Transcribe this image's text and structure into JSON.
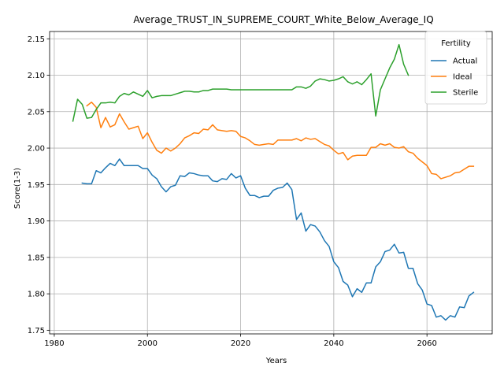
{
  "chart_data": {
    "type": "line",
    "title": "Average_TRUST_IN_SUPREME_COURT_White_Below_Average_IQ",
    "xlabel": "Years",
    "ylabel": "Score(1-3)",
    "xlim": [
      1979,
      2074
    ],
    "ylim": [
      1.745,
      2.16
    ],
    "xticks": [
      1980,
      2000,
      2020,
      2040,
      2060
    ],
    "yticks": [
      1.75,
      1.8,
      1.85,
      1.9,
      1.95,
      2.0,
      2.05,
      2.1,
      2.15
    ],
    "grid": true,
    "legend": {
      "title": "Fertility",
      "position": "top-right"
    },
    "series": [
      {
        "name": "Actual",
        "color": "#1f77b4",
        "x": [
          1986,
          1987,
          1988,
          1989,
          1990,
          1991,
          1992,
          1993,
          1994,
          1995,
          1996,
          1997,
          1998,
          1999,
          2000,
          2001,
          2002,
          2003,
          2004,
          2005,
          2006,
          2007,
          2008,
          2009,
          2010,
          2011,
          2012,
          2013,
          2014,
          2015,
          2016,
          2017,
          2018,
          2019,
          2020,
          2021,
          2022,
          2023,
          2024,
          2025,
          2026,
          2027,
          2028,
          2029,
          2030,
          2031,
          2032,
          2033,
          2034,
          2035,
          2036,
          2037,
          2038,
          2039,
          2040,
          2041,
          2042,
          2043,
          2044,
          2045,
          2046,
          2047,
          2048,
          2049,
          2050,
          2051,
          2052,
          2053,
          2054,
          2055,
          2056,
          2057,
          2058,
          2059,
          2060,
          2061,
          2062,
          2063,
          2064,
          2065,
          2066,
          2067,
          2068,
          2069,
          2070
        ],
        "y": [
          1.952,
          1.951,
          1.951,
          1.969,
          1.966,
          1.973,
          1.979,
          1.976,
          1.985,
          1.976,
          1.976,
          1.976,
          1.976,
          1.972,
          1.972,
          1.963,
          1.958,
          1.947,
          1.94,
          1.947,
          1.949,
          1.962,
          1.961,
          1.966,
          1.965,
          1.963,
          1.962,
          1.962,
          1.955,
          1.954,
          1.958,
          1.957,
          1.965,
          1.959,
          1.962,
          1.945,
          1.935,
          1.935,
          1.932,
          1.934,
          1.934,
          1.942,
          1.945,
          1.946,
          1.952,
          1.943,
          1.902,
          1.911,
          1.886,
          1.895,
          1.893,
          1.885,
          1.873,
          1.865,
          1.844,
          1.836,
          1.817,
          1.812,
          1.796,
          1.807,
          1.802,
          1.815,
          1.815,
          1.837,
          1.844,
          1.858,
          1.86,
          1.868,
          1.856,
          1.857,
          1.835,
          1.835,
          1.814,
          1.805,
          1.786,
          1.784,
          1.768,
          1.77,
          1.764,
          1.77,
          1.768,
          1.782,
          1.781,
          1.797,
          1.802
        ]
      },
      {
        "name": "Ideal",
        "color": "#ff7f0e",
        "x": [
          1987,
          1988,
          1989,
          1990,
          1991,
          1992,
          1993,
          1994,
          1995,
          1996,
          1997,
          1998,
          1999,
          2000,
          2001,
          2002,
          2003,
          2004,
          2005,
          2006,
          2007,
          2008,
          2009,
          2010,
          2011,
          2012,
          2013,
          2014,
          2015,
          2016,
          2017,
          2018,
          2019,
          2020,
          2021,
          2022,
          2023,
          2024,
          2025,
          2026,
          2027,
          2028,
          2029,
          2030,
          2031,
          2032,
          2033,
          2034,
          2035,
          2036,
          2037,
          2038,
          2039,
          2040,
          2041,
          2042,
          2043,
          2044,
          2045,
          2046,
          2047,
          2048,
          2049,
          2050,
          2051,
          2052,
          2053,
          2054,
          2055,
          2056,
          2057,
          2058,
          2059,
          2060,
          2061,
          2062,
          2063,
          2064,
          2065,
          2066,
          2067,
          2068,
          2069,
          2070
        ],
        "y": [
          2.058,
          2.063,
          2.056,
          2.028,
          2.042,
          2.029,
          2.032,
          2.047,
          2.036,
          2.026,
          2.028,
          2.03,
          2.013,
          2.021,
          2.008,
          1.997,
          1.993,
          2.0,
          1.996,
          2.0,
          2.006,
          2.014,
          2.017,
          2.021,
          2.02,
          2.026,
          2.025,
          2.032,
          2.025,
          2.024,
          2.023,
          2.024,
          2.023,
          2.016,
          2.014,
          2.01,
          2.005,
          2.004,
          2.005,
          2.006,
          2.005,
          2.011,
          2.011,
          2.011,
          2.011,
          2.013,
          2.01,
          2.014,
          2.012,
          2.013,
          2.009,
          2.005,
          2.003,
          1.997,
          1.992,
          1.994,
          1.984,
          1.989,
          1.99,
          1.99,
          1.99,
          2.001,
          2.001,
          2.006,
          2.004,
          2.006,
          2.001,
          2.0,
          2.002,
          1.995,
          1.993,
          1.986,
          1.981,
          1.976,
          1.965,
          1.964,
          1.958,
          1.96,
          1.962,
          1.966,
          1.967,
          1.971,
          1.975,
          1.975
        ]
      },
      {
        "name": "Sterile",
        "color": "#2ca02c",
        "x": [
          1984,
          1985,
          1986,
          1987,
          1988,
          1989,
          1990,
          1991,
          1992,
          1993,
          1994,
          1995,
          1996,
          1997,
          1998,
          1999,
          2000,
          2001,
          2002,
          2003,
          2004,
          2005,
          2006,
          2007,
          2008,
          2009,
          2010,
          2011,
          2012,
          2013,
          2014,
          2015,
          2016,
          2017,
          2018,
          2019,
          2020,
          2021,
          2022,
          2023,
          2024,
          2025,
          2026,
          2027,
          2028,
          2029,
          2030,
          2031,
          2032,
          2033,
          2034,
          2035,
          2036,
          2037,
          2038,
          2039,
          2040,
          2041,
          2042,
          2043,
          2044,
          2045,
          2046,
          2047,
          2048,
          2049,
          2050,
          2051,
          2052,
          2053,
          2054,
          2055,
          2056
        ],
        "y": [
          2.037,
          2.067,
          2.06,
          2.041,
          2.042,
          2.053,
          2.062,
          2.062,
          2.063,
          2.062,
          2.071,
          2.075,
          2.073,
          2.077,
          2.074,
          2.071,
          2.079,
          2.069,
          2.071,
          2.072,
          2.072,
          2.072,
          2.074,
          2.076,
          2.078,
          2.078,
          2.077,
          2.077,
          2.079,
          2.079,
          2.081,
          2.081,
          2.081,
          2.081,
          2.08,
          2.08,
          2.08,
          2.08,
          2.08,
          2.08,
          2.08,
          2.08,
          2.08,
          2.08,
          2.08,
          2.08,
          2.08,
          2.08,
          2.084,
          2.084,
          2.082,
          2.085,
          2.092,
          2.095,
          2.094,
          2.092,
          2.093,
          2.095,
          2.098,
          2.091,
          2.088,
          2.091,
          2.087,
          2.094,
          2.102,
          2.044,
          2.08,
          2.095,
          2.11,
          2.122,
          2.142,
          2.115,
          2.1
        ]
      }
    ]
  }
}
